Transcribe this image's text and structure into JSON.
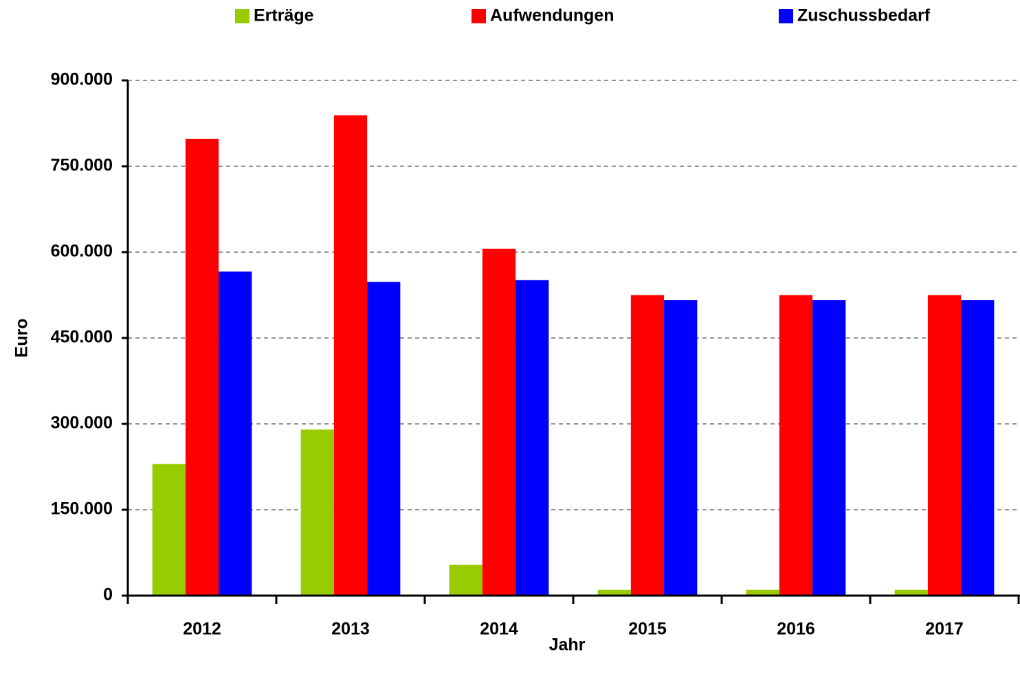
{
  "chart_data": {
    "type": "bar",
    "x_label": "Jahr",
    "y_label": "Euro",
    "categories": [
      "2012",
      "2013",
      "2014",
      "2015",
      "2016",
      "2017"
    ],
    "series": [
      {
        "name": "Erträge",
        "color": "#99cc00",
        "values": [
          230000,
          290000,
          54000,
          10000,
          10000,
          10000
        ]
      },
      {
        "name": "Aufwendungen",
        "color": "#ff0000",
        "values": [
          798000,
          839000,
          606000,
          525000,
          525000,
          525000
        ]
      },
      {
        "name": "Zuschussbedarf",
        "color": "#0000ff",
        "values": [
          566000,
          548000,
          551000,
          516000,
          516000,
          516000
        ]
      }
    ],
    "ylim": [
      0,
      900000
    ],
    "yticks": [
      0,
      {
        "value": 150000,
        "label": "150.000"
      },
      {
        "value": 300000,
        "label": "300.000"
      },
      {
        "value": 450000,
        "label": "450.000"
      },
      {
        "value": 600000,
        "label": "600.000"
      },
      {
        "value": 750000,
        "label": "750.000"
      },
      {
        "value": 900000,
        "label": "900.000"
      }
    ],
    "grid": true,
    "legend": "top"
  }
}
